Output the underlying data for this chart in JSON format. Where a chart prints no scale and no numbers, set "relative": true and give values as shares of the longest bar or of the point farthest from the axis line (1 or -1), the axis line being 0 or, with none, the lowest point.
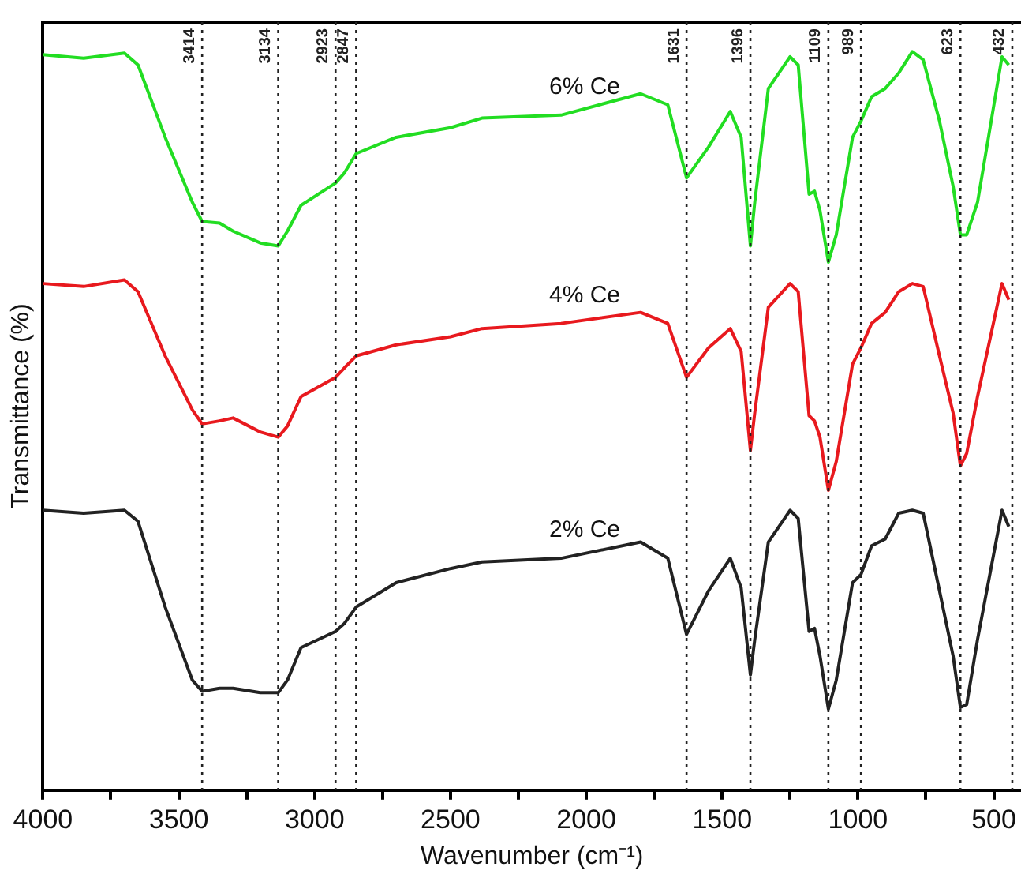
{
  "chart_data": {
    "type": "line",
    "relative": true,
    "xlabel": "Wavenumber (cm⁻¹)",
    "ylabel": "Transmittance (%)",
    "xlim": [
      4000,
      400
    ],
    "xticks": [
      4000,
      {
        "value": 3750,
        "label": null
      },
      3500,
      {
        "value": 3250,
        "label": null
      },
      3000,
      {
        "value": 2750,
        "label": null
      },
      2500,
      {
        "value": 2250,
        "label": null
      },
      2000,
      {
        "value": 1750,
        "label": null
      },
      1500,
      {
        "value": 1250,
        "label": null
      },
      1000,
      {
        "value": 750,
        "label": null
      },
      500
    ],
    "x": [
      4000,
      3850,
      3700,
      3650,
      3550,
      3450,
      3414,
      3350,
      3300,
      3200,
      3134,
      3100,
      3050,
      2923,
      2890,
      2847,
      2700,
      2500,
      2384,
      2093,
      1800,
      1700,
      1631,
      1550,
      1470,
      1430,
      1396,
      1380,
      1330,
      1250,
      1220,
      1180,
      1160,
      1140,
      1109,
      1080,
      1020,
      989,
      950,
      900,
      850,
      800,
      760,
      700,
      650,
      623,
      600,
      560,
      470,
      445
    ],
    "series": [
      {
        "name": "6% Ce",
        "color": "#22dd22",
        "values": [
          0.996,
          0.991,
          0.998,
          0.982,
          0.884,
          0.796,
          0.77,
          0.768,
          0.757,
          0.741,
          0.737,
          0.757,
          0.792,
          0.822,
          0.836,
          0.862,
          0.884,
          0.897,
          0.91,
          0.914,
          0.943,
          0.928,
          0.829,
          0.871,
          0.919,
          0.884,
          0.737,
          0.796,
          0.95,
          0.993,
          0.982,
          0.807,
          0.811,
          0.785,
          0.715,
          0.752,
          0.884,
          0.906,
          0.939,
          0.95,
          0.971,
          1.0,
          0.989,
          0.906,
          0.818,
          0.752,
          0.752,
          0.796,
          0.993,
          0.982
        ]
      },
      {
        "name": "4% Ce",
        "color": "#e8191e",
        "values": [
          0.686,
          0.682,
          0.691,
          0.675,
          0.588,
          0.515,
          0.496,
          0.5,
          0.504,
          0.485,
          0.478,
          0.493,
          0.533,
          0.559,
          0.572,
          0.588,
          0.603,
          0.614,
          0.625,
          0.632,
          0.647,
          0.632,
          0.559,
          0.599,
          0.625,
          0.594,
          0.46,
          0.511,
          0.654,
          0.686,
          0.675,
          0.507,
          0.5,
          0.478,
          0.406,
          0.445,
          0.577,
          0.599,
          0.632,
          0.647,
          0.675,
          0.686,
          0.682,
          0.588,
          0.511,
          0.439,
          0.456,
          0.533,
          0.686,
          0.664
        ]
      },
      {
        "name": "2% Ce",
        "color": "#222222",
        "values": [
          0.379,
          0.375,
          0.379,
          0.364,
          0.248,
          0.149,
          0.134,
          0.138,
          0.138,
          0.132,
          0.132,
          0.149,
          0.193,
          0.215,
          0.226,
          0.248,
          0.281,
          0.3,
          0.309,
          0.314,
          0.336,
          0.314,
          0.211,
          0.27,
          0.314,
          0.274,
          0.156,
          0.204,
          0.336,
          0.379,
          0.368,
          0.215,
          0.219,
          0.182,
          0.11,
          0.149,
          0.281,
          0.292,
          0.331,
          0.34,
          0.375,
          0.379,
          0.375,
          0.27,
          0.182,
          0.112,
          0.116,
          0.204,
          0.379,
          0.357
        ]
      }
    ],
    "ref_lines": [
      {
        "axis": "x",
        "value": 3414,
        "label": "3414",
        "color": "#222222",
        "line_style": "dotted"
      },
      {
        "axis": "x",
        "value": 3134,
        "label": "3134",
        "color": "#222222",
        "line_style": "dotted"
      },
      {
        "axis": "x",
        "value": 2923,
        "label": "2923",
        "color": "#222222",
        "line_style": "dotted"
      },
      {
        "axis": "x",
        "value": 2847,
        "label": "2847",
        "color": "#222222",
        "line_style": "dotted"
      },
      {
        "axis": "x",
        "value": 1631,
        "label": "1631",
        "color": "#222222",
        "line_style": "dotted"
      },
      {
        "axis": "x",
        "value": 1396,
        "label": "1396",
        "color": "#222222",
        "line_style": "dotted"
      },
      {
        "axis": "x",
        "value": 1109,
        "label": "1109",
        "color": "#222222",
        "line_style": "dotted"
      },
      {
        "axis": "x",
        "value": 989,
        "label": "989",
        "color": "#222222",
        "line_style": "dotted"
      },
      {
        "axis": "x",
        "value": 623,
        "label": "623",
        "color": "#222222",
        "line_style": "dotted"
      },
      {
        "axis": "x",
        "value": 432,
        "label": "432",
        "color": "#222222",
        "line_style": "dotted"
      }
    ],
    "grid": false,
    "legend": false,
    "marker": "none",
    "line_style": "solid"
  }
}
